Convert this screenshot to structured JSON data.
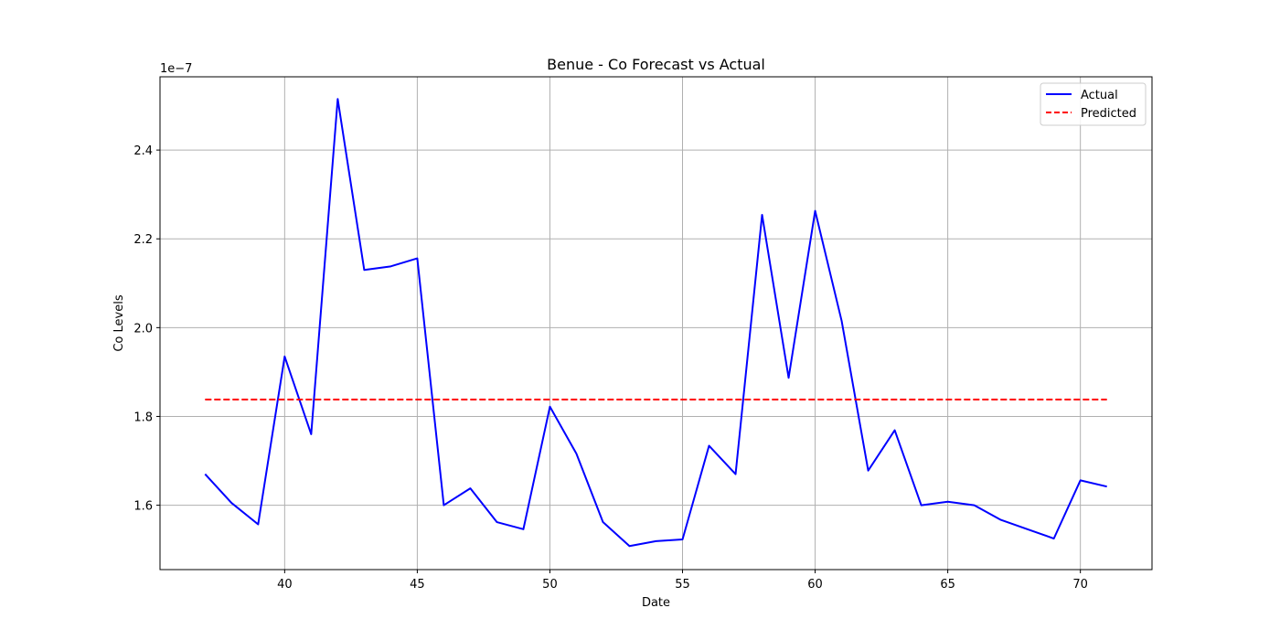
{
  "chart_data": {
    "type": "line",
    "title": "Benue - Co Forecast vs Actual",
    "xlabel": "Date",
    "ylabel": "Co Levels",
    "y_offset_label": "1e−7",
    "y_scale": 1e-07,
    "xlim": [
      35.3,
      72.7
    ],
    "ylim": [
      1.455e-07,
      2.565e-07
    ],
    "x_ticks": [
      40,
      45,
      50,
      55,
      60,
      65,
      70
    ],
    "y_ticks": [
      1.6,
      1.8,
      2.0,
      2.2,
      2.4
    ],
    "grid": true,
    "legend_position": "top-right",
    "series": [
      {
        "name": "Actual",
        "color": "#0000ff",
        "style": "solid",
        "x": [
          37,
          38,
          39,
          40,
          41,
          42,
          43,
          44,
          45,
          46,
          47,
          48,
          49,
          50,
          51,
          52,
          53,
          54,
          55,
          56,
          57,
          58,
          59,
          60,
          61,
          62,
          63,
          64,
          65,
          66,
          67,
          68,
          69,
          70,
          71
        ],
        "values": [
          1.67e-07,
          1.605e-07,
          1.557e-07,
          1.935e-07,
          1.76e-07,
          2.515e-07,
          2.13e-07,
          2.138e-07,
          2.156e-07,
          1.6e-07,
          1.638e-07,
          1.562e-07,
          1.546e-07,
          1.822e-07,
          1.716e-07,
          1.562e-07,
          1.508e-07,
          1.519e-07,
          1.523e-07,
          1.734e-07,
          1.67e-07,
          2.254e-07,
          1.887e-07,
          2.263e-07,
          2.015e-07,
          1.678e-07,
          1.769e-07,
          1.6e-07,
          1.608e-07,
          1.6e-07,
          1.567e-07,
          1.546e-07,
          1.525e-07,
          1.656e-07,
          1.642e-07
        ]
      },
      {
        "name": "Predicted",
        "color": "#ff0000",
        "style": "dashed",
        "x": [
          37,
          71
        ],
        "values": [
          1.838e-07,
          1.838e-07
        ]
      }
    ]
  }
}
